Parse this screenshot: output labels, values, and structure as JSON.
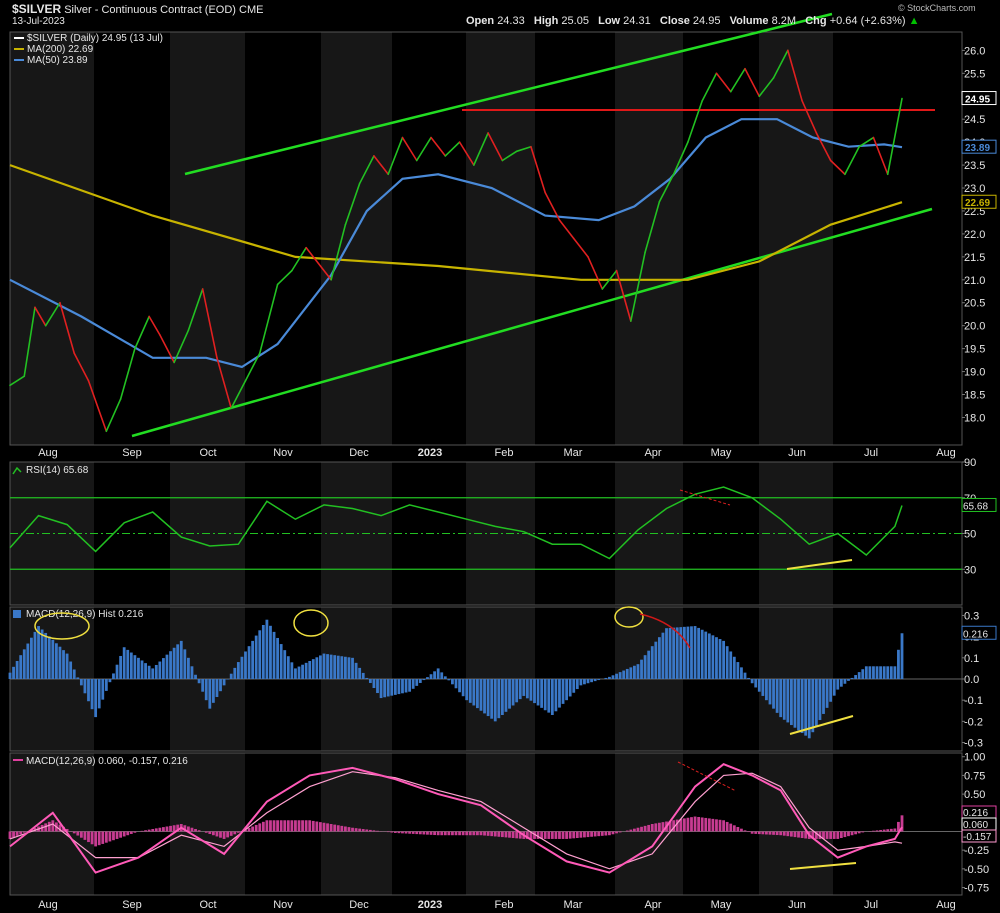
{
  "header": {
    "symbol": "$SILVER",
    "description": "Silver - Continuous Contract (EOD)",
    "exchange": "CME",
    "date": "13-Jul-2023",
    "ohlc": {
      "open_label": "Open",
      "open": "24.33",
      "high_label": "High",
      "high": "25.05",
      "low_label": "Low",
      "low": "24.31",
      "close_label": "Close",
      "close": "24.95",
      "volume_label": "Volume",
      "volume": "8.2M",
      "chg_label": "Chg",
      "chg": "+0.64 (+2.63%)"
    },
    "watermark": "© StockCharts.com"
  },
  "chart_data": [
    {
      "type": "line",
      "name": "price",
      "legend": [
        {
          "text": "$SILVER (Daily) 24.95 (13 Jul)",
          "color": "#ffffff"
        },
        {
          "text": "MA(200) 22.69",
          "color": "#c8b400"
        },
        {
          "text": "MA(50) 23.89",
          "color": "#4a8ad8"
        }
      ],
      "ylim": [
        17.4,
        26.4
      ],
      "yticks": [
        "26.0",
        "25.5",
        "25.0",
        "24.5",
        "24.0",
        "23.5",
        "23.0",
        "22.5",
        "22.0",
        "21.5",
        "21.0",
        "20.5",
        "20.0",
        "19.5",
        "19.0",
        "18.5",
        "18.0"
      ],
      "xticks": [
        "Aug",
        "Sep",
        "Oct",
        "Nov",
        "Dec",
        "2023",
        "Feb",
        "Mar",
        "Apr",
        "May",
        "Jun",
        "Jul",
        "Aug"
      ],
      "price_tags": [
        {
          "text": "24.95",
          "value": 24.95,
          "color": "#ffffff"
        },
        {
          "text": "23.89",
          "value": 23.89,
          "color": "#4a8ad8"
        },
        {
          "text": "22.69",
          "value": 22.69,
          "color": "#c8b400"
        }
      ],
      "series": [
        {
          "name": "$SILVER",
          "t": [
            0,
            4,
            7,
            10,
            14,
            18,
            22,
            27,
            31,
            35,
            39,
            42,
            46,
            50,
            54,
            58,
            62,
            66,
            70,
            75,
            79,
            83,
            87,
            90,
            94,
            98,
            102,
            106,
            110,
            114,
            118,
            122,
            126,
            130,
            134,
            138,
            142,
            146,
            150,
            154,
            158,
            162,
            166,
            170,
            174,
            178,
            182,
            186,
            190,
            194,
            198,
            202,
            206,
            210,
            214,
            218,
            222,
            226,
            230,
            234,
            238,
            242,
            246,
            250
          ],
          "values": [
            18.7,
            18.9,
            20.4,
            20.0,
            20.5,
            19.4,
            18.8,
            17.7,
            18.4,
            19.5,
            20.2,
            19.8,
            19.2,
            19.9,
            20.8,
            19.3,
            18.2,
            18.8,
            19.4,
            20.9,
            21.2,
            21.7,
            21.3,
            21.0,
            22.2,
            23.1,
            23.7,
            23.3,
            24.1,
            23.6,
            24.1,
            23.7,
            24.0,
            23.5,
            24.2,
            23.6,
            23.8,
            23.9,
            22.9,
            22.3,
            21.9,
            21.5,
            20.8,
            21.2,
            20.1,
            21.6,
            22.7,
            23.3,
            24.0,
            24.9,
            25.5,
            25.1,
            25.6,
            25.0,
            25.4,
            26.0,
            24.9,
            24.2,
            23.6,
            23.3,
            23.9,
            24.1,
            23.3,
            24.95
          ]
        },
        {
          "name": "MA(200)",
          "t": [
            0,
            40,
            80,
            120,
            160,
            190,
            210,
            230,
            250
          ],
          "values": [
            23.5,
            22.4,
            21.5,
            21.3,
            21.0,
            21.0,
            21.4,
            22.2,
            22.69
          ]
        },
        {
          "name": "MA(50)",
          "t": [
            0,
            20,
            40,
            55,
            65,
            75,
            90,
            100,
            110,
            120,
            135,
            150,
            165,
            175,
            185,
            195,
            205,
            215,
            225,
            235,
            245,
            250
          ],
          "values": [
            21.0,
            20.2,
            19.3,
            19.3,
            19.1,
            19.6,
            21.1,
            22.5,
            23.2,
            23.3,
            23.0,
            22.4,
            22.3,
            22.6,
            23.2,
            24.1,
            24.5,
            24.5,
            24.1,
            23.9,
            23.95,
            23.89
          ]
        }
      ]
    },
    {
      "type": "line",
      "name": "rsi",
      "title": "RSI(14) 65.68",
      "ylim": [
        10,
        90
      ],
      "yticks": [
        "90",
        "70",
        "50",
        "30"
      ],
      "levels": [
        70,
        30,
        50
      ],
      "value_tag": "65.68",
      "series": [
        {
          "name": "RSI(14)",
          "t": [
            0,
            8,
            16,
            24,
            32,
            40,
            48,
            56,
            64,
            72,
            80,
            88,
            96,
            104,
            112,
            120,
            128,
            136,
            144,
            152,
            160,
            168,
            176,
            184,
            192,
            200,
            208,
            216,
            224,
            232,
            240,
            248,
            250
          ],
          "values": [
            42,
            60,
            55,
            40,
            56,
            62,
            48,
            43,
            44,
            68,
            58,
            66,
            64,
            60,
            66,
            62,
            58,
            54,
            51,
            44,
            44,
            36,
            52,
            64,
            72,
            76,
            70,
            58,
            44,
            50,
            38,
            54,
            65.68
          ]
        }
      ]
    },
    {
      "type": "bar",
      "name": "macd_hist",
      "title": "MACD(12,26,9) Hist 0.216",
      "ylim": [
        -0.34,
        0.34
      ],
      "yticks": [
        "0.3",
        "0.2",
        "0.1",
        "0.0",
        "-0.1",
        "-0.2",
        "-0.3"
      ],
      "value_tag": "0.216",
      "t": [
        0,
        8,
        16,
        24,
        32,
        40,
        48,
        56,
        64,
        72,
        80,
        88,
        96,
        104,
        112,
        120,
        128,
        136,
        144,
        152,
        160,
        168,
        176,
        184,
        192,
        200,
        208,
        216,
        224,
        232,
        240,
        248,
        250
      ],
      "values": [
        0.03,
        0.25,
        0.12,
        -0.18,
        0.15,
        0.05,
        0.18,
        -0.14,
        0.08,
        0.28,
        0.05,
        0.12,
        0.1,
        -0.09,
        -0.06,
        0.05,
        -0.1,
        -0.2,
        -0.08,
        -0.17,
        -0.03,
        0.01,
        0.07,
        0.24,
        0.25,
        0.18,
        -0.02,
        -0.18,
        -0.28,
        -0.05,
        0.06,
        0.06,
        0.216
      ]
    },
    {
      "type": "line",
      "name": "macd",
      "title": "MACD(12,26,9) 0.060, -0.157, 0.216",
      "ylim": [
        -0.85,
        1.05
      ],
      "yticks": [
        "1.00",
        "0.75",
        "0.50",
        "0.25",
        "0.00",
        "-0.25",
        "-0.50",
        "-0.75"
      ],
      "value_tags": [
        {
          "text": "0.216",
          "value": 0.216,
          "color": "#e040a0"
        },
        {
          "text": "0.060",
          "value": 0.06,
          "color": "#ffffff"
        },
        {
          "text": "-0.157",
          "value": -0.157,
          "color": "#ff9ad0"
        }
      ],
      "t": [
        0,
        12,
        24,
        36,
        48,
        60,
        72,
        84,
        96,
        108,
        120,
        132,
        144,
        156,
        168,
        180,
        192,
        200,
        208,
        216,
        224,
        232,
        240,
        248,
        250
      ],
      "series": [
        {
          "name": "MACD",
          "values": [
            -0.2,
            0.25,
            -0.55,
            -0.35,
            0.05,
            -0.3,
            0.4,
            0.75,
            0.85,
            0.7,
            0.5,
            0.35,
            -0.05,
            -0.4,
            -0.55,
            -0.2,
            0.6,
            0.9,
            0.75,
            0.55,
            -0.05,
            -0.35,
            -0.2,
            -0.1,
            0.06
          ]
        },
        {
          "name": "Signal",
          "values": [
            -0.1,
            0.1,
            -0.35,
            -0.35,
            -0.05,
            -0.2,
            0.25,
            0.6,
            0.8,
            0.72,
            0.55,
            0.4,
            0.05,
            -0.3,
            -0.5,
            -0.3,
            0.4,
            0.75,
            0.78,
            0.6,
            0.05,
            -0.25,
            -0.2,
            -0.14,
            -0.157
          ]
        },
        {
          "name": "Hist",
          "values": [
            -0.1,
            0.15,
            -0.2,
            0.0,
            0.1,
            -0.1,
            0.15,
            0.15,
            0.05,
            -0.02,
            -0.05,
            -0.05,
            -0.1,
            -0.1,
            -0.05,
            0.1,
            0.2,
            0.15,
            -0.03,
            -0.05,
            -0.1,
            -0.1,
            0.0,
            0.04,
            0.216
          ]
        }
      ]
    }
  ]
}
